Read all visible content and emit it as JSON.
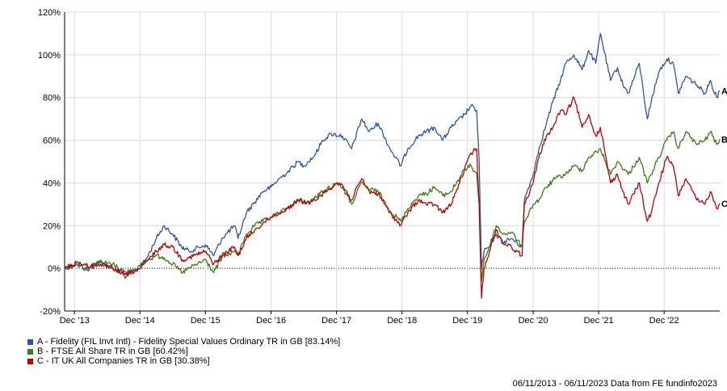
{
  "chart_data": {
    "type": "line",
    "yaxis": {
      "min": -20,
      "max": 120,
      "ticks": [
        -20,
        0,
        20,
        40,
        60,
        80,
        100,
        120
      ],
      "tick_labels": [
        "-20%",
        "0%",
        "20%",
        "40%",
        "60%",
        "80%",
        "100%",
        "120%"
      ]
    },
    "xaxis": {
      "start": "2013-11-06",
      "end": "2023-11-06",
      "ticks": [
        {
          "date": "2013-12-31",
          "label": "Dec '13"
        },
        {
          "date": "2014-12-31",
          "label": "Dec '14"
        },
        {
          "date": "2015-12-31",
          "label": "Dec '15"
        },
        {
          "date": "2016-12-31",
          "label": "Dec '16"
        },
        {
          "date": "2017-12-31",
          "label": "Dec '17"
        },
        {
          "date": "2018-12-31",
          "label": "Dec '18"
        },
        {
          "date": "2019-12-31",
          "label": "Dec '19"
        },
        {
          "date": "2020-12-31",
          "label": "Dec '20"
        },
        {
          "date": "2021-12-31",
          "label": "Dec '21"
        },
        {
          "date": "2022-12-31",
          "label": "Dec '22"
        }
      ]
    },
    "grid": true,
    "zero_line": "dotted",
    "legend_position": "bottom-left",
    "series": [
      {
        "name": "A - Fidelity (FIL Invt Intl) - Fidelity Special Values Ordinary TR in GB [83.14%]",
        "end_label": "A",
        "color": "#2d56a8",
        "points": [
          [
            "2013-11-06",
            0
          ],
          [
            "2014-01-15",
            2
          ],
          [
            "2014-03-15",
            -1
          ],
          [
            "2014-05-15",
            3
          ],
          [
            "2014-08-01",
            0
          ],
          [
            "2014-10-15",
            -4
          ],
          [
            "2014-12-31",
            0
          ],
          [
            "2015-02-15",
            6
          ],
          [
            "2015-04-01",
            14
          ],
          [
            "2015-05-15",
            20
          ],
          [
            "2015-07-01",
            16
          ],
          [
            "2015-08-20",
            10
          ],
          [
            "2015-10-01",
            8
          ],
          [
            "2015-12-31",
            11
          ],
          [
            "2016-02-15",
            6
          ],
          [
            "2016-04-01",
            14
          ],
          [
            "2016-06-10",
            20
          ],
          [
            "2016-06-30",
            14
          ],
          [
            "2016-08-15",
            26
          ],
          [
            "2016-10-01",
            31
          ],
          [
            "2016-11-15",
            36
          ],
          [
            "2016-12-31",
            38
          ],
          [
            "2017-02-15",
            42
          ],
          [
            "2017-04-01",
            45
          ],
          [
            "2017-05-31",
            50
          ],
          [
            "2017-07-01",
            48
          ],
          [
            "2017-09-01",
            53
          ],
          [
            "2017-10-15",
            60
          ],
          [
            "2017-12-01",
            63
          ],
          [
            "2018-02-01",
            62
          ],
          [
            "2018-03-25",
            56
          ],
          [
            "2018-05-20",
            70
          ],
          [
            "2018-07-01",
            64
          ],
          [
            "2018-08-20",
            68
          ],
          [
            "2018-10-25",
            56
          ],
          [
            "2018-12-24",
            48
          ],
          [
            "2019-02-01",
            56
          ],
          [
            "2019-04-01",
            62
          ],
          [
            "2019-05-15",
            64
          ],
          [
            "2019-07-01",
            66
          ],
          [
            "2019-08-15",
            60
          ],
          [
            "2019-10-01",
            66
          ],
          [
            "2019-12-13",
            72
          ],
          [
            "2020-01-20",
            76
          ],
          [
            "2020-02-20",
            74
          ],
          [
            "2020-03-05",
            50
          ],
          [
            "2020-03-18",
            0
          ],
          [
            "2020-04-01",
            8
          ],
          [
            "2020-05-01",
            10
          ],
          [
            "2020-06-08",
            16
          ],
          [
            "2020-07-15",
            12
          ],
          [
            "2020-09-01",
            14
          ],
          [
            "2020-10-30",
            10
          ],
          [
            "2020-11-12",
            32
          ],
          [
            "2020-12-31",
            44
          ],
          [
            "2021-02-01",
            56
          ],
          [
            "2021-03-15",
            68
          ],
          [
            "2021-04-20",
            78
          ],
          [
            "2021-06-01",
            88
          ],
          [
            "2021-06-30",
            96
          ],
          [
            "2021-08-15",
            100
          ],
          [
            "2021-09-30",
            93
          ],
          [
            "2021-11-05",
            102
          ],
          [
            "2021-12-15",
            96
          ],
          [
            "2022-01-10",
            110
          ],
          [
            "2022-03-07",
            88
          ],
          [
            "2022-04-15",
            94
          ],
          [
            "2022-05-15",
            86
          ],
          [
            "2022-06-15",
            82
          ],
          [
            "2022-08-15",
            96
          ],
          [
            "2022-09-28",
            70
          ],
          [
            "2022-10-20",
            78
          ],
          [
            "2022-12-01",
            92
          ],
          [
            "2023-01-15",
            98
          ],
          [
            "2023-02-20",
            96
          ],
          [
            "2023-03-20",
            82
          ],
          [
            "2023-05-01",
            90
          ],
          [
            "2023-07-01",
            86
          ],
          [
            "2023-08-15",
            82
          ],
          [
            "2023-09-15",
            88
          ],
          [
            "2023-10-20",
            80
          ],
          [
            "2023-11-06",
            83.14
          ]
        ]
      },
      {
        "name": "B - FTSE All Share TR in GB [60.42%]",
        "end_label": "B",
        "color": "#3c7b1d",
        "points": [
          [
            "2013-11-06",
            0
          ],
          [
            "2014-01-15",
            2
          ],
          [
            "2014-03-15",
            0
          ],
          [
            "2014-05-15",
            3
          ],
          [
            "2014-08-01",
            2
          ],
          [
            "2014-10-15",
            -2
          ],
          [
            "2014-12-31",
            1
          ],
          [
            "2015-02-15",
            4
          ],
          [
            "2015-04-01",
            6
          ],
          [
            "2015-05-15",
            5
          ],
          [
            "2015-07-01",
            2
          ],
          [
            "2015-08-25",
            -2
          ],
          [
            "2015-10-01",
            0
          ],
          [
            "2015-12-31",
            4
          ],
          [
            "2016-02-15",
            -2
          ],
          [
            "2016-04-01",
            5
          ],
          [
            "2016-06-10",
            8
          ],
          [
            "2016-06-30",
            6
          ],
          [
            "2016-08-15",
            16
          ],
          [
            "2016-10-01",
            20
          ],
          [
            "2016-11-15",
            22
          ],
          [
            "2016-12-31",
            24
          ],
          [
            "2017-02-15",
            26
          ],
          [
            "2017-04-01",
            28
          ],
          [
            "2017-06-01",
            32
          ],
          [
            "2017-08-01",
            31
          ],
          [
            "2017-10-01",
            35
          ],
          [
            "2017-12-31",
            40
          ],
          [
            "2018-02-01",
            38
          ],
          [
            "2018-03-25",
            30
          ],
          [
            "2018-05-20",
            40
          ],
          [
            "2018-07-01",
            37
          ],
          [
            "2018-08-20",
            36
          ],
          [
            "2018-10-25",
            27
          ],
          [
            "2018-12-24",
            22
          ],
          [
            "2019-02-01",
            28
          ],
          [
            "2019-04-01",
            34
          ],
          [
            "2019-05-15",
            35
          ],
          [
            "2019-07-01",
            38
          ],
          [
            "2019-08-15",
            34
          ],
          [
            "2019-10-01",
            36
          ],
          [
            "2019-12-13",
            46
          ],
          [
            "2020-01-20",
            48
          ],
          [
            "2020-02-20",
            44
          ],
          [
            "2020-03-05",
            30
          ],
          [
            "2020-03-18",
            -6
          ],
          [
            "2020-04-01",
            4
          ],
          [
            "2020-05-01",
            10
          ],
          [
            "2020-06-08",
            20
          ],
          [
            "2020-07-15",
            16
          ],
          [
            "2020-09-01",
            17
          ],
          [
            "2020-10-30",
            10
          ],
          [
            "2020-11-12",
            22
          ],
          [
            "2020-12-31",
            30
          ],
          [
            "2021-02-01",
            32
          ],
          [
            "2021-03-15",
            38
          ],
          [
            "2021-05-01",
            42
          ],
          [
            "2021-06-30",
            44
          ],
          [
            "2021-08-15",
            48
          ],
          [
            "2021-09-30",
            46
          ],
          [
            "2021-11-05",
            52
          ],
          [
            "2021-12-31",
            55
          ],
          [
            "2022-01-10",
            56
          ],
          [
            "2022-03-07",
            44
          ],
          [
            "2022-04-15",
            50
          ],
          [
            "2022-06-15",
            44
          ],
          [
            "2022-08-15",
            52
          ],
          [
            "2022-09-28",
            40
          ],
          [
            "2022-10-20",
            44
          ],
          [
            "2022-12-01",
            52
          ],
          [
            "2023-01-15",
            60
          ],
          [
            "2023-02-20",
            64
          ],
          [
            "2023-03-20",
            56
          ],
          [
            "2023-05-01",
            64
          ],
          [
            "2023-07-01",
            58
          ],
          [
            "2023-08-15",
            60
          ],
          [
            "2023-09-15",
            64
          ],
          [
            "2023-10-20",
            58
          ],
          [
            "2023-11-06",
            60.42
          ]
        ]
      },
      {
        "name": "C - IT UK All Companies TR in GB [30.38%]",
        "end_label": "C",
        "color": "#c00000",
        "points": [
          [
            "2013-11-06",
            0
          ],
          [
            "2014-01-15",
            3
          ],
          [
            "2014-03-15",
            1
          ],
          [
            "2014-05-15",
            2
          ],
          [
            "2014-08-01",
            0
          ],
          [
            "2014-10-15",
            -3
          ],
          [
            "2014-12-31",
            0
          ],
          [
            "2015-02-15",
            4
          ],
          [
            "2015-04-01",
            8
          ],
          [
            "2015-05-15",
            11
          ],
          [
            "2015-07-01",
            10
          ],
          [
            "2015-08-25",
            4
          ],
          [
            "2015-10-01",
            5
          ],
          [
            "2015-12-31",
            8
          ],
          [
            "2016-02-15",
            2
          ],
          [
            "2016-04-01",
            6
          ],
          [
            "2016-06-10",
            10
          ],
          [
            "2016-06-30",
            6
          ],
          [
            "2016-08-15",
            14
          ],
          [
            "2016-10-01",
            18
          ],
          [
            "2016-11-15",
            21
          ],
          [
            "2016-12-31",
            24
          ],
          [
            "2017-02-15",
            26
          ],
          [
            "2017-04-01",
            28
          ],
          [
            "2017-06-01",
            32
          ],
          [
            "2017-08-01",
            30
          ],
          [
            "2017-10-01",
            34
          ],
          [
            "2017-12-31",
            40
          ],
          [
            "2018-02-01",
            39
          ],
          [
            "2018-03-25",
            32
          ],
          [
            "2018-05-20",
            42
          ],
          [
            "2018-07-01",
            36
          ],
          [
            "2018-08-20",
            35
          ],
          [
            "2018-10-25",
            26
          ],
          [
            "2018-12-24",
            20
          ],
          [
            "2019-02-01",
            26
          ],
          [
            "2019-04-01",
            32
          ],
          [
            "2019-05-15",
            30
          ],
          [
            "2019-07-01",
            30
          ],
          [
            "2019-08-15",
            26
          ],
          [
            "2019-10-01",
            30
          ],
          [
            "2019-12-13",
            46
          ],
          [
            "2020-01-20",
            54
          ],
          [
            "2020-02-20",
            56
          ],
          [
            "2020-03-05",
            30
          ],
          [
            "2020-03-18",
            -14
          ],
          [
            "2020-04-01",
            0
          ],
          [
            "2020-05-01",
            8
          ],
          [
            "2020-06-08",
            18
          ],
          [
            "2020-07-15",
            12
          ],
          [
            "2020-09-01",
            10
          ],
          [
            "2020-10-30",
            6
          ],
          [
            "2020-11-12",
            30
          ],
          [
            "2020-12-31",
            40
          ],
          [
            "2021-02-01",
            52
          ],
          [
            "2021-03-15",
            62
          ],
          [
            "2021-04-20",
            66
          ],
          [
            "2021-06-01",
            74
          ],
          [
            "2021-06-30",
            72
          ],
          [
            "2021-08-15",
            80
          ],
          [
            "2021-09-30",
            66
          ],
          [
            "2021-11-05",
            72
          ],
          [
            "2021-12-15",
            62
          ],
          [
            "2022-01-10",
            66
          ],
          [
            "2022-03-07",
            40
          ],
          [
            "2022-04-15",
            44
          ],
          [
            "2022-05-15",
            36
          ],
          [
            "2022-06-15",
            30
          ],
          [
            "2022-08-15",
            40
          ],
          [
            "2022-09-28",
            22
          ],
          [
            "2022-10-20",
            26
          ],
          [
            "2022-12-01",
            40
          ],
          [
            "2023-01-15",
            52
          ],
          [
            "2023-02-20",
            48
          ],
          [
            "2023-03-20",
            34
          ],
          [
            "2023-05-01",
            42
          ],
          [
            "2023-07-01",
            32
          ],
          [
            "2023-08-15",
            30
          ],
          [
            "2023-09-15",
            36
          ],
          [
            "2023-10-20",
            28
          ],
          [
            "2023-11-06",
            30.38
          ]
        ]
      }
    ]
  },
  "footer": {
    "text": "06/11/2013 - 06/11/2023 Data from FE fundinfo2023"
  }
}
